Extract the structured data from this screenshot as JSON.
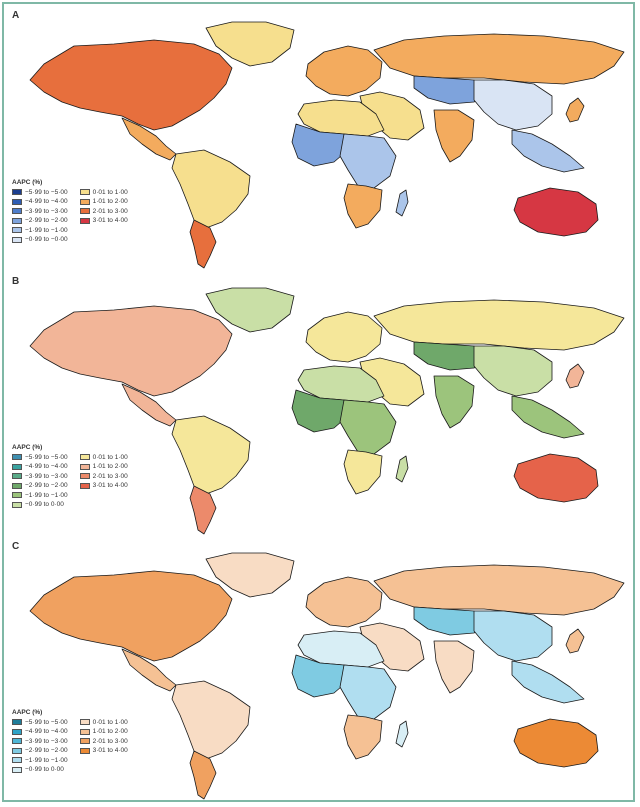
{
  "panels": [
    {
      "letter": "A",
      "legend_title": "AAPC (%)",
      "neg_legend": [
        {
          "label": "−5·99 to −5·00",
          "color": "#1c3f8f"
        },
        {
          "label": "−4·99 to −4·00",
          "color": "#2e5db4"
        },
        {
          "label": "−3·99 to −3·00",
          "color": "#4f7ecb"
        },
        {
          "label": "−2·99 to −2·00",
          "color": "#7ea3dc"
        },
        {
          "label": "−1·99 to −1·00",
          "color": "#abc5ea"
        },
        {
          "label": "−0·99 to −0·00",
          "color": "#d9e4f4"
        }
      ],
      "pos_legend": [
        {
          "label": "0·01 to 1·00",
          "color": "#f6df8e"
        },
        {
          "label": "1·01 to 2·00",
          "color": "#f3ab5e"
        },
        {
          "label": "2·01 to 3·00",
          "color": "#e76f3d"
        },
        {
          "label": "3·01 to 4·00",
          "color": "#d63743"
        }
      ],
      "fills": {
        "north_america": "#e76f3d",
        "greenland": "#f6df8e",
        "central_america": "#f3ab5e",
        "south_america_north": "#f6df8e",
        "south_america_south": "#e76f3d",
        "europe": "#f3ab5e",
        "russia": "#f3ab5e",
        "central_asia": "#7ea3dc",
        "middle_east": "#f6df8e",
        "china": "#d9e4f4",
        "india": "#f3ab5e",
        "se_asia": "#abc5ea",
        "africa_north": "#f6df8e",
        "africa_west": "#7ea3dc",
        "africa_central": "#abc5ea",
        "africa_south": "#f3ab5e",
        "australia": "#d63743",
        "japan": "#f3ab5e",
        "madagascar": "#abc5ea"
      }
    },
    {
      "letter": "B",
      "legend_title": "AAPC (%)",
      "neg_legend": [
        {
          "label": "−5·99 to −5·00",
          "color": "#3f8fb0"
        },
        {
          "label": "−4·99 to −4·00",
          "color": "#3aa3a0"
        },
        {
          "label": "−3·99 to −3·00",
          "color": "#5aab88"
        },
        {
          "label": "−2·99 to −2·00",
          "color": "#6fa86a"
        },
        {
          "label": "−1·99 to −1·00",
          "color": "#9cc47c"
        },
        {
          "label": "−0·99 to 0·00",
          "color": "#c9dfa6"
        }
      ],
      "pos_legend": [
        {
          "label": "0·01 to 1·00",
          "color": "#f5e79a"
        },
        {
          "label": "1·01 to 2·00",
          "color": "#f2b598"
        },
        {
          "label": "2·01 to 3·00",
          "color": "#ec8a6b"
        },
        {
          "label": "3·01 to 4·00",
          "color": "#e5634a"
        }
      ],
      "fills": {
        "north_america": "#f2b598",
        "greenland": "#c9dfa6",
        "central_america": "#f2b598",
        "south_america_north": "#f5e79a",
        "south_america_south": "#ec8a6b",
        "europe": "#f5e79a",
        "russia": "#f5e79a",
        "central_asia": "#6fa86a",
        "middle_east": "#f5e79a",
        "china": "#c9dfa6",
        "india": "#9cc47c",
        "se_asia": "#9cc47c",
        "africa_north": "#c9dfa6",
        "africa_west": "#6fa86a",
        "africa_central": "#9cc47c",
        "africa_south": "#f5e79a",
        "australia": "#e5634a",
        "japan": "#f2b598",
        "madagascar": "#c9dfa6"
      }
    },
    {
      "letter": "C",
      "legend_title": "AAPC (%)",
      "neg_legend": [
        {
          "label": "−5·99 to −5·00",
          "color": "#1f7d9a"
        },
        {
          "label": "−4·99 to −4·00",
          "color": "#2ea3c7"
        },
        {
          "label": "−3·99 to −3·00",
          "color": "#4fb7d6"
        },
        {
          "label": "−2·99 to −2·00",
          "color": "#7fcbe2"
        },
        {
          "label": "−1·99 to −1·00",
          "color": "#b0def0"
        },
        {
          "label": "−0·99 to 0·00",
          "color": "#d8eef5"
        }
      ],
      "pos_legend": [
        {
          "label": "0·01 to 1·00",
          "color": "#f8dcc4"
        },
        {
          "label": "1·01 to 2·00",
          "color": "#f5c194"
        },
        {
          "label": "2·01 to 3·00",
          "color": "#f0a160"
        },
        {
          "label": "3·01 to 4·00",
          "color": "#ec8a35"
        }
      ],
      "fills": {
        "north_america": "#f0a160",
        "greenland": "#f8dcc4",
        "central_america": "#f5c194",
        "south_america_north": "#f8dcc4",
        "south_america_south": "#f0a160",
        "europe": "#f5c194",
        "russia": "#f5c194",
        "central_asia": "#7fcbe2",
        "middle_east": "#f8dcc4",
        "china": "#b0def0",
        "india": "#f8dcc4",
        "se_asia": "#b0def0",
        "africa_north": "#d8eef5",
        "africa_west": "#7fcbe2",
        "africa_central": "#b0def0",
        "africa_south": "#f5c194",
        "australia": "#ec8a35",
        "japan": "#f5c194",
        "madagascar": "#d8eef5"
      }
    }
  ]
}
